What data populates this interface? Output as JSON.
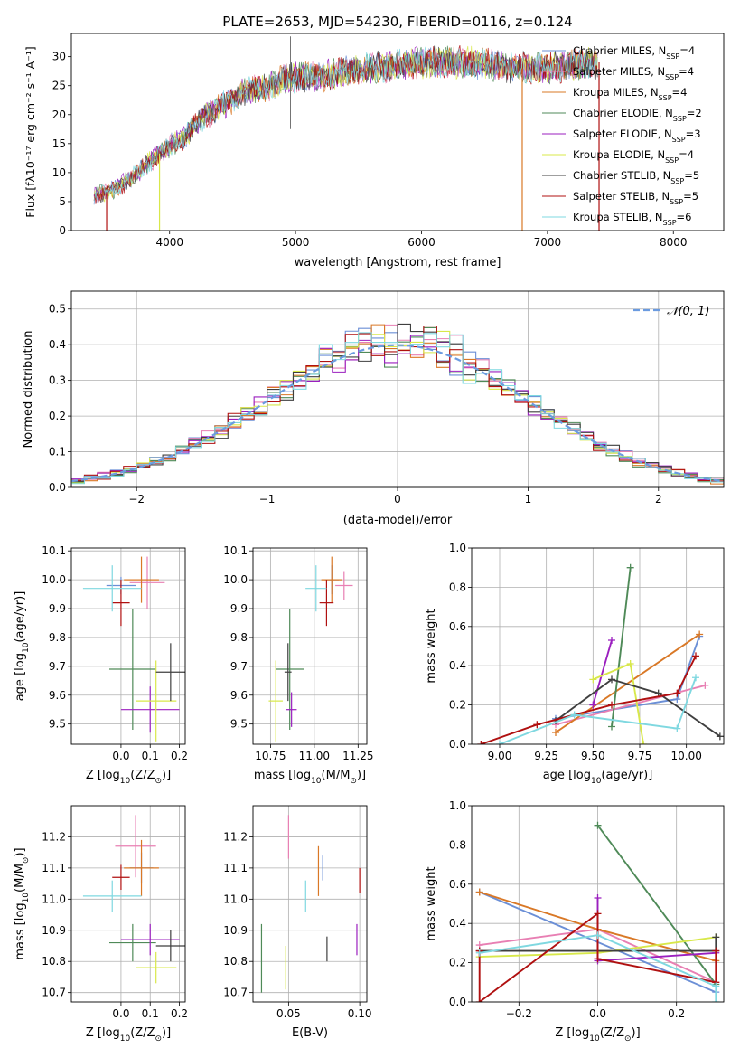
{
  "figure": {
    "title": "PLATE=2653, MJD=54230, FIBERID=0116, z=0.124"
  },
  "colors": {
    "chabrier_miles": "#6b8fd6",
    "salpeter_miles": "#e87fb3",
    "kroupa_miles": "#d97826",
    "chabrier_elodie": "#4f8a58",
    "salpeter_elodie": "#9b1fbf",
    "kroupa_elodie": "#d8e84a",
    "chabrier_stelib": "#3f3f3f",
    "salpeter_stelib": "#b01010",
    "kroupa_stelib": "#7fd8e0",
    "normal_curve": "#6b9be0",
    "grid": "#b0b0b0"
  },
  "chart_data": [
    {
      "id": "spectrum",
      "type": "line",
      "xlabel": "wavelength [Angstrom, rest frame]",
      "ylabel": "Flux [fλ10⁻¹⁷ erg cm⁻² s⁻¹ A⁻¹]",
      "xlim": [
        3220,
        8400
      ],
      "ylim": [
        0,
        34
      ],
      "xticks": [
        4000,
        5000,
        6000,
        7000,
        8000
      ],
      "yticks": [
        0,
        5,
        10,
        15,
        20,
        25,
        30
      ],
      "grid": false,
      "legend_position": "top-right",
      "data_range_x": [
        3400,
        7400
      ],
      "continuum": {
        "x": [
          3400,
          3550,
          3700,
          3800,
          3900,
          4000,
          4100,
          4200,
          4300,
          4400,
          4500,
          4600,
          4700,
          4800,
          4900,
          5000,
          5200,
          5400,
          5600,
          5800,
          6000,
          6200,
          6400,
          6600,
          6800,
          7000,
          7200,
          7400
        ],
        "y": [
          6,
          7,
          9,
          11,
          13,
          14.5,
          16,
          18,
          20,
          21.5,
          22.5,
          24,
          24.5,
          25,
          26,
          26.5,
          26.5,
          27.5,
          28,
          28.5,
          29,
          29,
          29,
          28.5,
          28,
          28,
          28.5,
          29
        ]
      },
      "series": [
        {
          "name": "Chabrier MILES, N_SSP=4",
          "color_key": "chabrier_miles"
        },
        {
          "name": "Salpeter MILES, N_SSP=4",
          "color_key": "salpeter_miles"
        },
        {
          "name": "Kroupa MILES, N_SSP=4",
          "color_key": "kroupa_miles"
        },
        {
          "name": "Chabrier ELODIE, N_SSP=2",
          "color_key": "chabrier_elodie"
        },
        {
          "name": "Salpeter ELODIE, N_SSP=3",
          "color_key": "salpeter_elodie"
        },
        {
          "name": "Kroupa ELODIE, N_SSP=4",
          "color_key": "kroupa_elodie"
        },
        {
          "name": "Chabrier STELIB, N_SSP=5",
          "color_key": "chabrier_stelib"
        },
        {
          "name": "Salpeter STELIB, N_SSP=5",
          "color_key": "salpeter_stelib"
        },
        {
          "name": "Kroupa STELIB, N_SSP=6",
          "color_key": "kroupa_stelib"
        }
      ],
      "legend_labels": [
        {
          "model": "Chabrier MILES, N",
          "sub": "SSP",
          "eq": "=4"
        },
        {
          "model": "Salpeter MILES, N",
          "sub": "SSP",
          "eq": "=4"
        },
        {
          "model": "Kroupa MILES, N",
          "sub": "SSP",
          "eq": "=4"
        },
        {
          "model": "Chabrier ELODIE, N",
          "sub": "SSP",
          "eq": "=2"
        },
        {
          "model": "Salpeter ELODIE, N",
          "sub": "SSP",
          "eq": "=3"
        },
        {
          "model": "Kroupa ELODIE, N",
          "sub": "SSP",
          "eq": "=4"
        },
        {
          "model": "Chabrier STELIB, N",
          "sub": "SSP",
          "eq": "=5"
        },
        {
          "model": "Salpeter STELIB, N",
          "sub": "SSP",
          "eq": "=5"
        },
        {
          "model": "Kroupa STELIB, N",
          "sub": "SSP",
          "eq": "=6"
        }
      ],
      "vertical_drops": [
        {
          "x": 3500,
          "color_key": "salpeter_stelib"
        },
        {
          "x": 3920,
          "color_key": "kroupa_elodie"
        },
        {
          "x": 6800,
          "color_key": "kroupa_miles"
        },
        {
          "x": 7410,
          "color_key": "salpeter_stelib"
        }
      ],
      "spikes": [
        {
          "x": 4960,
          "y": 33.5
        },
        {
          "x": 4960,
          "y": 17.5
        }
      ]
    },
    {
      "id": "residuals",
      "type": "histogram",
      "xlabel": "(data-model)/error",
      "ylabel": "Normed distribution",
      "xlim": [
        -2.5,
        2.5
      ],
      "ylim": [
        0,
        0.55
      ],
      "xticks": [
        -2,
        -1,
        0,
        1,
        2
      ],
      "xtick_labels": [
        "−2",
        "−1",
        "0",
        "1",
        "2"
      ],
      "yticks": [
        0.0,
        0.1,
        0.2,
        0.3,
        0.4,
        0.5
      ],
      "ytick_labels": [
        "0.0",
        "0.1",
        "0.2",
        "0.3",
        "0.4",
        "0.5"
      ],
      "grid": true,
      "bin_width": 0.1,
      "legend_position": "top-right",
      "normal_curve_label": "𝒩(0, 1)"
    },
    {
      "id": "age_vs_Z",
      "type": "errorbar",
      "xlabel": "Z [log10(Z/Z⊙)]",
      "ylabel": "age  [log10(age/yr)]",
      "xlim": [
        -0.17,
        0.22
      ],
      "ylim": [
        9.43,
        10.11
      ],
      "xticks": [
        0.0,
        0.1,
        0.2
      ],
      "yticks": [
        9.5,
        9.6,
        9.7,
        9.8,
        9.9,
        10.0,
        10.1
      ],
      "grid": true,
      "points": [
        {
          "x": 0.0,
          "xerr": 0.05,
          "y": 9.98,
          "yerr": 0.03,
          "color_key": "chabrier_miles"
        },
        {
          "x": 0.09,
          "xerr": 0.06,
          "y": 9.99,
          "yerr": 0.09,
          "color_key": "salpeter_miles"
        },
        {
          "x": 0.07,
          "xerr": 0.06,
          "y": 10.0,
          "yerr": 0.08,
          "color_key": "kroupa_miles"
        },
        {
          "x": 0.04,
          "xerr": 0.08,
          "y": 9.69,
          "yerr": 0.21,
          "color_key": "chabrier_elodie"
        },
        {
          "x": 0.1,
          "xerr": 0.1,
          "y": 9.55,
          "yerr": 0.08,
          "color_key": "salpeter_elodie"
        },
        {
          "x": 0.12,
          "xerr": 0.07,
          "y": 9.58,
          "yerr": 0.14,
          "color_key": "kroupa_elodie"
        },
        {
          "x": 0.17,
          "xerr": 0.05,
          "y": 9.68,
          "yerr": 0.1,
          "color_key": "chabrier_stelib"
        },
        {
          "x": 0.0,
          "xerr": 0.03,
          "y": 9.92,
          "yerr": 0.08,
          "color_key": "salpeter_stelib"
        },
        {
          "x": -0.03,
          "xerr": 0.1,
          "y": 9.97,
          "yerr": 0.08,
          "color_key": "kroupa_stelib"
        }
      ]
    },
    {
      "id": "age_vs_mass",
      "type": "errorbar",
      "xlabel": "mass [log10(M/M⊙)]",
      "ylabel": "",
      "xlim": [
        10.65,
        11.3
      ],
      "ylim": [
        9.43,
        10.11
      ],
      "xticks": [
        10.75,
        11.0,
        11.25
      ],
      "yticks": [
        9.5,
        9.6,
        9.7,
        9.8,
        9.9,
        10.0,
        10.1
      ],
      "grid": true,
      "points": [
        {
          "x": 11.1,
          "xerr": 0.04,
          "y": 10.0,
          "yerr": 0.05,
          "color_key": "chabrier_miles"
        },
        {
          "x": 11.17,
          "xerr": 0.05,
          "y": 9.98,
          "yerr": 0.05,
          "color_key": "salpeter_miles"
        },
        {
          "x": 11.1,
          "xerr": 0.06,
          "y": 10.0,
          "yerr": 0.08,
          "color_key": "kroupa_miles"
        },
        {
          "x": 10.86,
          "xerr": 0.08,
          "y": 9.69,
          "yerr": 0.21,
          "color_key": "chabrier_elodie"
        },
        {
          "x": 10.87,
          "xerr": 0.03,
          "y": 9.55,
          "yerr": 0.06,
          "color_key": "salpeter_elodie"
        },
        {
          "x": 10.78,
          "xerr": 0.04,
          "y": 9.58,
          "yerr": 0.14,
          "color_key": "kroupa_elodie"
        },
        {
          "x": 10.85,
          "xerr": 0.02,
          "y": 9.68,
          "yerr": 0.1,
          "color_key": "chabrier_stelib"
        },
        {
          "x": 11.07,
          "xerr": 0.04,
          "y": 9.92,
          "yerr": 0.08,
          "color_key": "salpeter_stelib"
        },
        {
          "x": 11.01,
          "xerr": 0.06,
          "y": 9.97,
          "yerr": 0.08,
          "color_key": "kroupa_stelib"
        }
      ]
    },
    {
      "id": "weight_vs_age",
      "type": "line",
      "xlabel": "age  [log10(age/yr)]",
      "ylabel": "mass weight",
      "xlim": [
        8.85,
        10.2
      ],
      "ylim": [
        0,
        1.0
      ],
      "xticks": [
        9.0,
        9.25,
        9.5,
        9.75,
        10.0
      ],
      "yticks": [
        0.0,
        0.2,
        0.4,
        0.6,
        0.8,
        1.0
      ],
      "grid": true,
      "series": [
        {
          "name": "Chabrier MILES",
          "color_key": "chabrier_miles",
          "x": [
            9.3,
            9.95,
            10.07
          ],
          "y": [
            0.13,
            0.23,
            0.55
          ]
        },
        {
          "name": "Salpeter MILES",
          "color_key": "salpeter_miles",
          "x": [
            9.3,
            10.1
          ],
          "y": [
            0.1,
            0.3
          ]
        },
        {
          "name": "Kroupa MILES",
          "color_key": "kroupa_miles",
          "x": [
            9.3,
            10.07
          ],
          "y": [
            0.06,
            0.56
          ]
        },
        {
          "name": "Chabrier ELODIE",
          "color_key": "chabrier_elodie",
          "x": [
            9.6,
            9.7
          ],
          "y": [
            0.09,
            0.9
          ]
        },
        {
          "name": "Salpeter ELODIE",
          "color_key": "salpeter_elodie",
          "x": [
            9.5,
            9.6
          ],
          "y": [
            0.2,
            0.53
          ]
        },
        {
          "name": "Kroupa ELODIE",
          "color_key": "kroupa_elodie",
          "x": [
            9.5,
            9.7,
            9.77
          ],
          "y": [
            0.33,
            0.41,
            0.0
          ]
        },
        {
          "name": "Chabrier STELIB",
          "color_key": "chabrier_stelib",
          "x": [
            9.3,
            9.6,
            9.85,
            10.18
          ],
          "y": [
            0.12,
            0.33,
            0.26,
            0.04
          ]
        },
        {
          "name": "Salpeter STELIB",
          "color_key": "salpeter_stelib",
          "x": [
            8.9,
            9.2,
            9.6,
            9.95,
            10.05
          ],
          "y": [
            0.0,
            0.1,
            0.2,
            0.26,
            0.45
          ]
        },
        {
          "name": "Kroupa STELIB",
          "color_key": "kroupa_stelib",
          "x": [
            9.0,
            9.4,
            9.95,
            10.05
          ],
          "y": [
            0.0,
            0.15,
            0.08,
            0.34
          ]
        }
      ]
    },
    {
      "id": "mass_vs_Z",
      "type": "errorbar",
      "xlabel": "Z [log10(Z/Z⊙)]",
      "ylabel": "mass [log10(M/M⊙)]",
      "xlim": [
        -0.17,
        0.22
      ],
      "ylim": [
        10.67,
        11.3
      ],
      "xticks": [
        0.0,
        0.1,
        0.2
      ],
      "yticks": [
        10.7,
        10.8,
        10.9,
        11.0,
        11.1,
        11.2
      ],
      "grid": true,
      "points": [
        {
          "x": 0.07,
          "xerr": 0.04,
          "y": 11.1,
          "yerr": 0.05,
          "color_key": "chabrier_miles"
        },
        {
          "x": 0.05,
          "xerr": 0.07,
          "y": 11.17,
          "yerr": 0.1,
          "color_key": "salpeter_miles"
        },
        {
          "x": 0.07,
          "xerr": 0.06,
          "y": 11.1,
          "yerr": 0.09,
          "color_key": "kroupa_miles"
        },
        {
          "x": 0.04,
          "xerr": 0.08,
          "y": 10.86,
          "yerr": 0.06,
          "color_key": "chabrier_elodie"
        },
        {
          "x": 0.1,
          "xerr": 0.1,
          "y": 10.87,
          "yerr": 0.05,
          "color_key": "salpeter_elodie"
        },
        {
          "x": 0.12,
          "xerr": 0.07,
          "y": 10.78,
          "yerr": 0.05,
          "color_key": "kroupa_elodie"
        },
        {
          "x": 0.17,
          "xerr": 0.05,
          "y": 10.85,
          "yerr": 0.05,
          "color_key": "chabrier_stelib"
        },
        {
          "x": 0.0,
          "xerr": 0.03,
          "y": 11.07,
          "yerr": 0.04,
          "color_key": "salpeter_stelib"
        },
        {
          "x": -0.03,
          "xerr": 0.1,
          "y": 11.01,
          "yerr": 0.05,
          "color_key": "kroupa_stelib"
        }
      ]
    },
    {
      "id": "mass_vs_ebv",
      "type": "errorbar",
      "xlabel": "E(B-V)",
      "ylabel": "",
      "xlim": [
        0.025,
        0.105
      ],
      "ylim": [
        10.67,
        11.3
      ],
      "xticks": [
        0.05,
        0.1
      ],
      "xtick_labels": [
        "0.05",
        "0.10"
      ],
      "yticks": [
        10.7,
        10.8,
        10.9,
        11.0,
        11.1,
        11.2
      ],
      "grid": true,
      "points": [
        {
          "x": 0.074,
          "xerr": 0.0,
          "y": 11.1,
          "yerr": 0.04,
          "color_key": "chabrier_miles"
        },
        {
          "x": 0.05,
          "xerr": 0.0,
          "y": 11.2,
          "yerr": 0.07,
          "color_key": "salpeter_miles"
        },
        {
          "x": 0.071,
          "xerr": 0.0,
          "y": 11.09,
          "yerr": 0.08,
          "color_key": "kroupa_miles"
        },
        {
          "x": 0.031,
          "xerr": 0.0,
          "y": 10.81,
          "yerr": 0.11,
          "color_key": "chabrier_elodie"
        },
        {
          "x": 0.098,
          "xerr": 0.0,
          "y": 10.87,
          "yerr": 0.05,
          "color_key": "salpeter_elodie"
        },
        {
          "x": 0.048,
          "xerr": 0.0,
          "y": 10.78,
          "yerr": 0.07,
          "color_key": "kroupa_elodie"
        },
        {
          "x": 0.077,
          "xerr": 0.0,
          "y": 10.84,
          "yerr": 0.04,
          "color_key": "chabrier_stelib"
        },
        {
          "x": 0.1,
          "xerr": 0.0,
          "y": 11.06,
          "yerr": 0.04,
          "color_key": "salpeter_stelib"
        },
        {
          "x": 0.062,
          "xerr": 0.0,
          "y": 11.01,
          "yerr": 0.05,
          "color_key": "kroupa_stelib"
        }
      ]
    },
    {
      "id": "weight_vs_Z",
      "type": "line",
      "xlabel": "Z [log10(Z/Z⊙)]",
      "ylabel": "mass weight",
      "xlim": [
        -0.32,
        0.32
      ],
      "ylim": [
        0,
        1.0
      ],
      "xticks": [
        -0.2,
        0.0,
        0.2
      ],
      "xtick_labels": [
        "−0.2",
        "0.0",
        "0.2"
      ],
      "yticks": [
        0.0,
        0.2,
        0.4,
        0.6,
        0.8,
        1.0
      ],
      "grid": true,
      "series": [
        {
          "name": "Chabrier MILES",
          "color_key": "chabrier_miles",
          "x": [
            -0.3,
            0.3
          ],
          "y": [
            0.56,
            0.05
          ]
        },
        {
          "name": "Salpeter MILES",
          "color_key": "salpeter_miles",
          "x": [
            -0.3,
            0.0,
            0.3
          ],
          "y": [
            0.29,
            0.37,
            0.1
          ]
        },
        {
          "name": "Kroupa MILES",
          "color_key": "kroupa_miles",
          "x": [
            -0.3,
            0.0,
            0.3
          ],
          "y": [
            0.56,
            0.37,
            0.21
          ]
        },
        {
          "name": "Chabrier ELODIE",
          "color_key": "chabrier_elodie",
          "x": [
            0.0,
            0.3
          ],
          "y": [
            0.9,
            0.09
          ]
        },
        {
          "name": "Salpeter ELODIE",
          "color_key": "salpeter_elodie",
          "x": [
            0.0,
            0.0,
            0.3
          ],
          "y": [
            0.53,
            0.21,
            0.25
          ]
        },
        {
          "name": "Kroupa ELODIE",
          "color_key": "kroupa_elodie",
          "x": [
            -0.3,
            0.0,
            0.3
          ],
          "y": [
            0.23,
            0.25,
            0.33
          ]
        },
        {
          "name": "Chabrier STELIB",
          "color_key": "chabrier_stelib",
          "x": [
            -0.3,
            0.3,
            0.3
          ],
          "y": [
            0.26,
            0.26,
            0.33
          ]
        },
        {
          "name": "Salpeter STELIB",
          "color_key": "salpeter_stelib",
          "x": [
            -0.3,
            -0.3,
            0.0,
            0.0,
            0.3,
            0.3
          ],
          "y": [
            0.26,
            0.0,
            0.45,
            0.22,
            0.1,
            0.26
          ]
        },
        {
          "name": "Kroupa STELIB",
          "color_key": "kroupa_stelib",
          "x": [
            -0.3,
            0.0,
            0.3,
            0.3
          ],
          "y": [
            0.25,
            0.34,
            0.08,
            0.0
          ]
        }
      ]
    }
  ]
}
